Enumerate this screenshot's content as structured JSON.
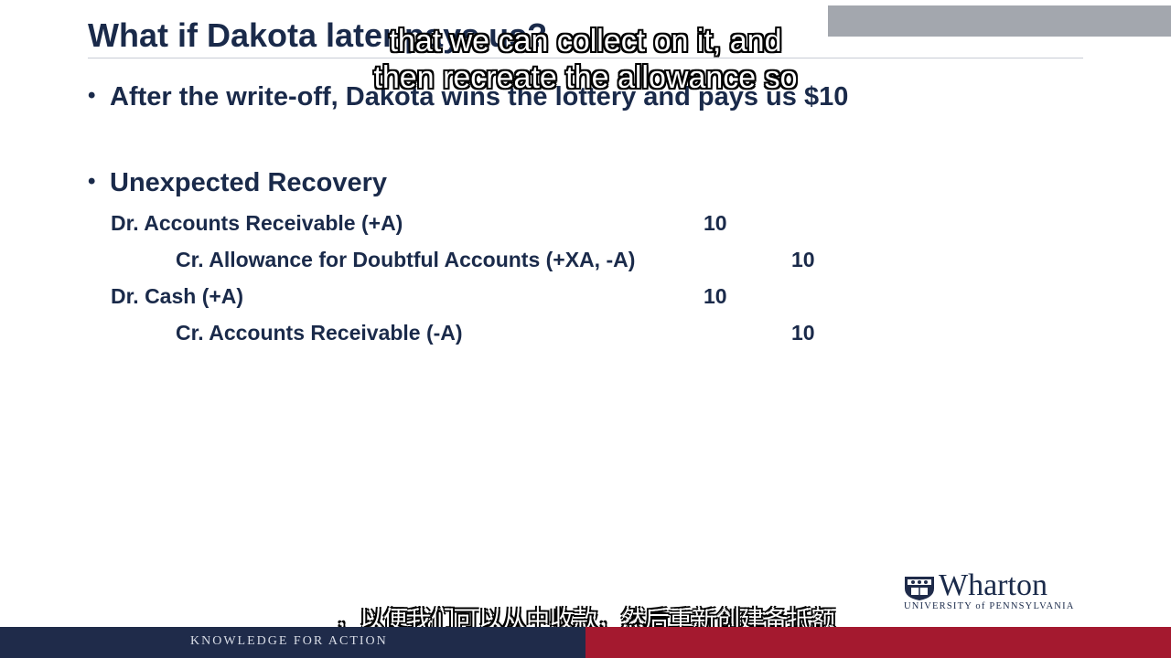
{
  "slide": {
    "title": "What if Dakota later pays us?",
    "bullet1": "After the write-off, Dakota wins the lottery and pays us $10",
    "bullet2": "Unexpected Recovery",
    "bullet_symbol": "•"
  },
  "journal_entries": [
    {
      "account": "Dr. Accounts Receivable (+A)",
      "debit": "10",
      "credit": ""
    },
    {
      "account": "Cr. Allowance for Doubtful Accounts (+XA, -A)",
      "debit": "",
      "credit": "10"
    },
    {
      "account": "Dr. Cash (+A)",
      "debit": "10",
      "credit": ""
    },
    {
      "account": "Cr. Accounts Receivable (-A)",
      "debit": "",
      "credit": "10"
    }
  ],
  "subtitles": {
    "english_line1": "that we can collect on it, and",
    "english_line2": "then recreate the allowance so",
    "chinese": "，以便我们可以从中收款，然后重新创建备抵额"
  },
  "logo": {
    "name": "Wharton",
    "university": "UNIVERSITY of PENNSYLVANIA"
  },
  "footer": {
    "tagline": "KNOWLEDGE FOR ACTION"
  },
  "colors": {
    "navy": "#1f2b4a",
    "text": "#1a2a4a",
    "red": "#a4192f",
    "gray_bar": "#a3a7ae"
  }
}
